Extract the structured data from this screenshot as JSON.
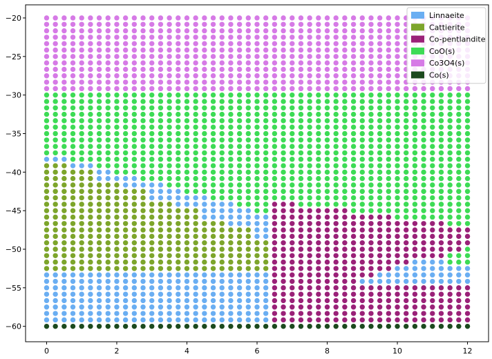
{
  "chart_data": {
    "type": "scatter",
    "title": "",
    "xlabel": "",
    "ylabel": "",
    "xlim": [
      -0.6,
      12.6
    ],
    "ylim": [
      -62,
      -18.3
    ],
    "x_ticks": [
      0,
      2,
      4,
      6,
      8,
      10,
      12
    ],
    "x_tick_labels": [
      "0",
      "2",
      "4",
      "6",
      "8",
      "10",
      "12"
    ],
    "y_ticks": [
      -20,
      -25,
      -30,
      -35,
      -40,
      -45,
      -50,
      -55,
      -60
    ],
    "y_tick_labels": [
      "−20",
      "−25",
      "−30",
      "−35",
      "−40",
      "−45",
      "−50",
      "−55",
      "−60"
    ],
    "grid": false,
    "legend_position": "top-right",
    "point_grid": {
      "x": {
        "start": 0,
        "end": 12,
        "count": 49
      },
      "y": {
        "start": -60,
        "end": -20,
        "count": 49
      }
    },
    "series": [
      {
        "name": "Linnaeite",
        "color": "#6aaef2"
      },
      {
        "name": "Cattierite",
        "color": "#7da52b"
      },
      {
        "name": "Co-pentlandite",
        "color": "#9a2178"
      },
      {
        "name": "CoO(s)",
        "color": "#3ddb55"
      },
      {
        "name": "Co3O4(s)",
        "color": "#d67ae6"
      },
      {
        "name": "Co(s)",
        "color": "#1c4a1e"
      }
    ],
    "regions": {
      "co_s_max_y": -60,
      "co3o4_min_y": -29.2,
      "lower_linnaeite_max_y": -53.2,
      "cattierite_max_y_left": -38.7,
      "cattierite_max_y_right": -53.2,
      "cattierite_right_end_x": 9.0,
      "linnaeite_band_top_left": -38.0,
      "linnaeite_band_top_right": -52.5,
      "linnaeite_band_right_end_x": 12.0,
      "copentlandite_x_min": 6.5,
      "copentlandite_start_y": -57.3,
      "copentlandite_end_y": -49.3,
      "copentlandite_upper_y_start": -43.8,
      "copentlandite_upper_y_end": -47.0
    }
  }
}
